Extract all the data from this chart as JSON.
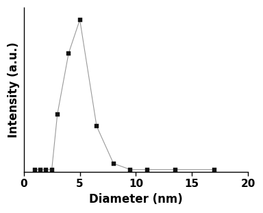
{
  "x": [
    1.0,
    1.5,
    2.0,
    2.5,
    3.0,
    4.0,
    5.0,
    6.5,
    8.0,
    9.5,
    11.0,
    13.5,
    17.0
  ],
  "y": [
    0.015,
    0.015,
    0.015,
    0.015,
    0.38,
    0.78,
    1.0,
    0.3,
    0.055,
    0.015,
    0.015,
    0.015,
    0.015
  ],
  "xlim": [
    0,
    20
  ],
  "ylim": [
    0,
    1.08
  ],
  "xlabel": "Diameter (nm)",
  "ylabel": "Intensity (a.u.)",
  "line_color": "#999999",
  "marker_color": "#111111",
  "marker": "s",
  "marker_size": 4,
  "line_width": 0.8,
  "xticks": [
    0,
    5,
    10,
    15,
    20
  ],
  "background_color": "#ffffff",
  "xlabel_fontsize": 12,
  "ylabel_fontsize": 12,
  "tick_fontsize": 11
}
